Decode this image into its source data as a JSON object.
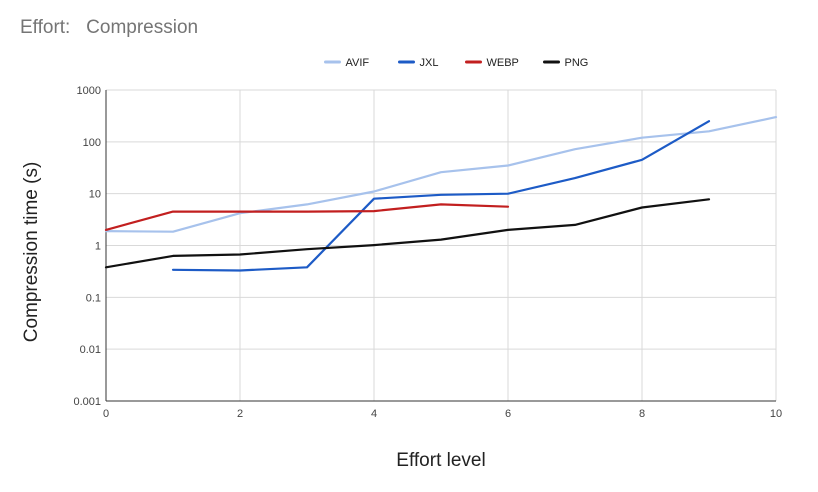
{
  "chart_data": {
    "type": "line",
    "title": "Effort:   Compression",
    "xlabel": "Effort level",
    "ylabel": "Compression time (s)",
    "y_scale": "log",
    "xlim": [
      0,
      10
    ],
    "ylim": [
      0.001,
      1000
    ],
    "x_ticks": [
      "0",
      "2",
      "4",
      "6",
      "8",
      "10"
    ],
    "y_ticks": [
      "1000",
      "100",
      "10",
      "1",
      "0.1",
      "0.01",
      "0.001"
    ],
    "grid": true,
    "legend_position": "top",
    "series": [
      {
        "name": "AVIF",
        "color": "#a7c2ec",
        "x": [
          0,
          1,
          2,
          3,
          4,
          5,
          6,
          7,
          8,
          9,
          10
        ],
        "values": [
          1.9,
          1.85,
          4.2,
          6.2,
          11,
          26,
          35,
          72,
          120,
          160,
          300
        ]
      },
      {
        "name": "JXL",
        "color": "#1d5bc6",
        "x": [
          1,
          2,
          3,
          4,
          5,
          6,
          7,
          8,
          9
        ],
        "values": [
          0.34,
          0.33,
          0.38,
          8,
          9.5,
          10,
          20,
          45,
          250
        ]
      },
      {
        "name": "WEBP",
        "color": "#c21f1f",
        "x": [
          0,
          1,
          2,
          3,
          4,
          5,
          6
        ],
        "values": [
          2.0,
          4.5,
          4.5,
          4.5,
          4.6,
          6.2,
          5.6
        ]
      },
      {
        "name": "PNG",
        "color": "#111111",
        "x": [
          0,
          1,
          2,
          3,
          4,
          5,
          6,
          7,
          8,
          9
        ],
        "values": [
          0.38,
          0.63,
          0.67,
          0.85,
          1.02,
          1.3,
          2.0,
          2.5,
          5.4,
          7.8
        ]
      }
    ]
  }
}
